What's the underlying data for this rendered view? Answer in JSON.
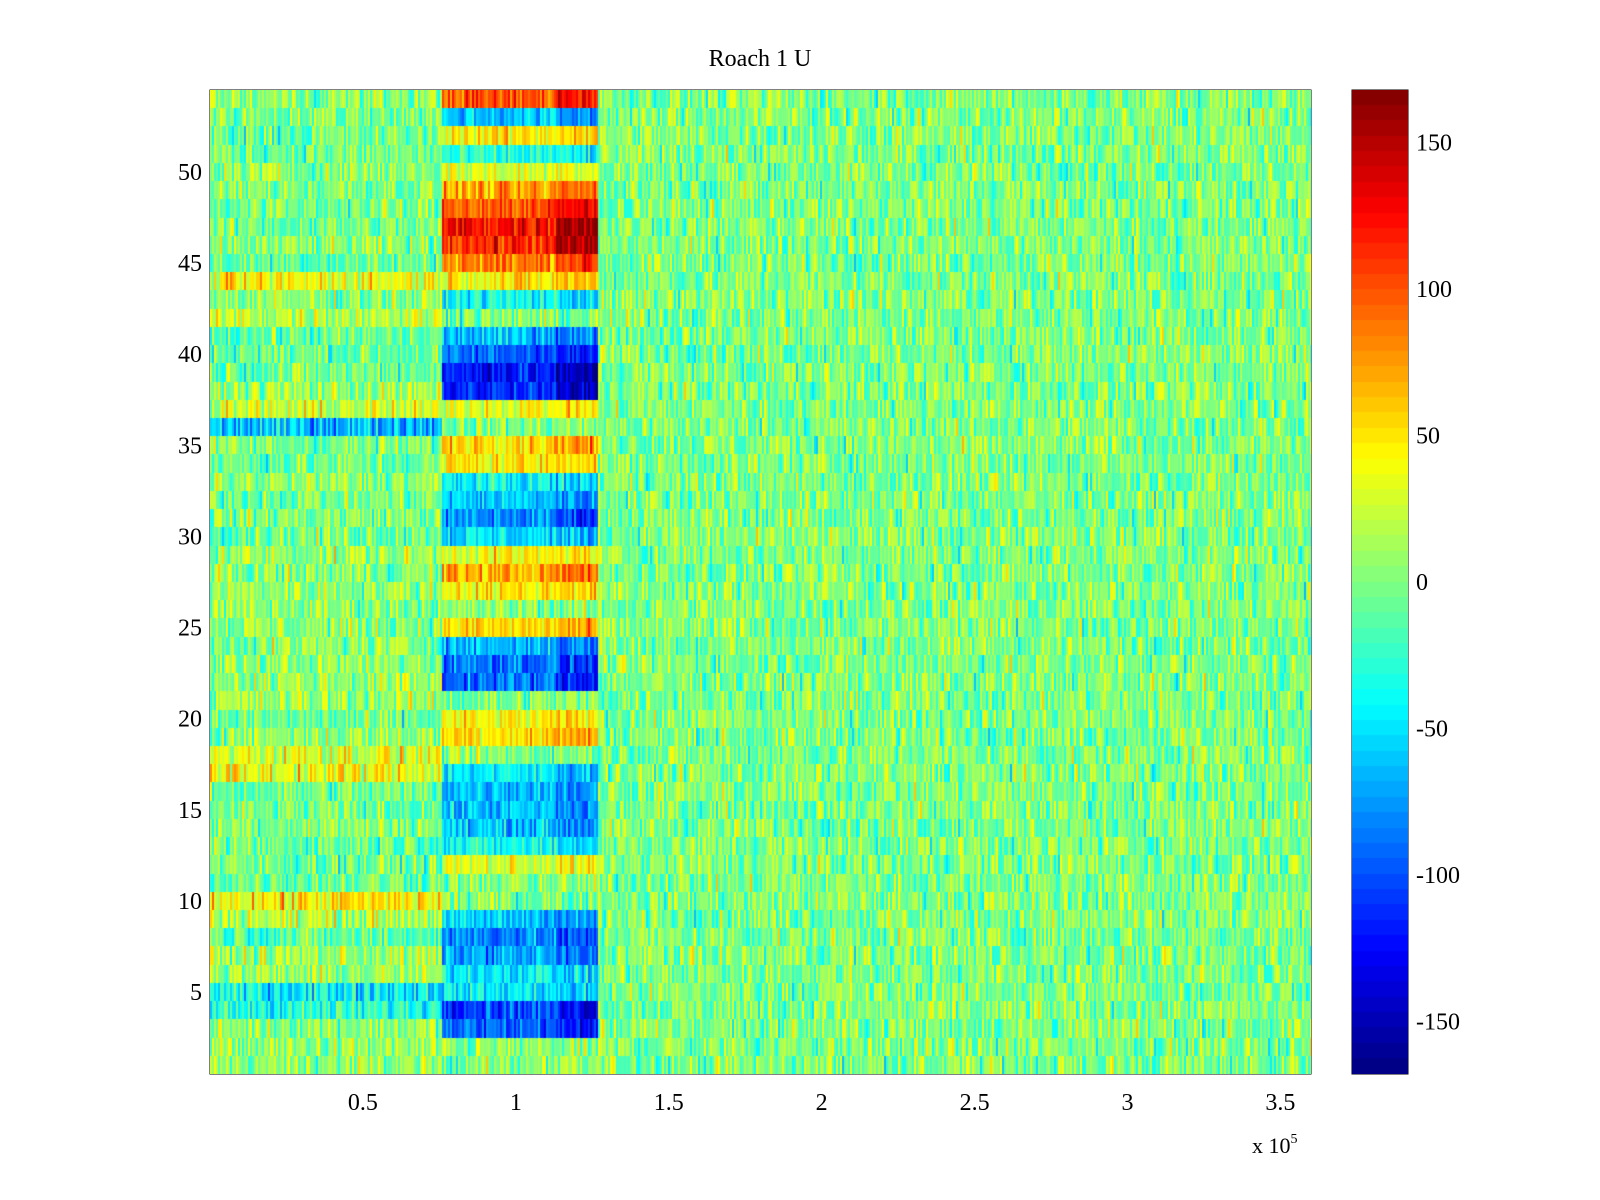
{
  "chart_data": {
    "type": "heatmap",
    "title": "Roach 1 U",
    "xlabel": "",
    "ylabel": "",
    "x_scale_label": "x 10",
    "x_scale_exponent": "5",
    "xlim": [
      0,
      3.6
    ],
    "ylim": [
      0.5,
      54.5
    ],
    "rows": 54,
    "x_ticks": [
      {
        "value": 0.5,
        "label": "0.5"
      },
      {
        "value": 1,
        "label": "1"
      },
      {
        "value": 1.5,
        "label": "1.5"
      },
      {
        "value": 2,
        "label": "2"
      },
      {
        "value": 2.5,
        "label": "2.5"
      },
      {
        "value": 3,
        "label": "3"
      },
      {
        "value": 3.5,
        "label": "3.5"
      }
    ],
    "y_ticks": [
      {
        "value": 5,
        "label": "5"
      },
      {
        "value": 10,
        "label": "10"
      },
      {
        "value": 15,
        "label": "15"
      },
      {
        "value": 20,
        "label": "20"
      },
      {
        "value": 25,
        "label": "25"
      },
      {
        "value": 30,
        "label": "30"
      },
      {
        "value": 35,
        "label": "35"
      },
      {
        "value": 40,
        "label": "40"
      },
      {
        "value": 45,
        "label": "45"
      },
      {
        "value": 50,
        "label": "50"
      }
    ],
    "colorbar": {
      "colormap": "jet",
      "clim": [
        -168,
        168
      ],
      "ticks": [
        {
          "value": 150,
          "label": "150"
        },
        {
          "value": 100,
          "label": "100"
        },
        {
          "value": 50,
          "label": "50"
        },
        {
          "value": 0,
          "label": "0"
        },
        {
          "value": -50,
          "label": "-50"
        },
        {
          "value": -100,
          "label": "-100"
        },
        {
          "value": -150,
          "label": "-150"
        }
      ]
    },
    "stimulus_window": {
      "x_start": 0.76,
      "x_mid": 1.13,
      "x_end": 1.27
    },
    "row_responses": [
      {
        "row": 3,
        "value": -110
      },
      {
        "row": 4,
        "value": -115
      },
      {
        "row": 5,
        "value": -55
      },
      {
        "row": 6,
        "value": -50
      },
      {
        "row": 7,
        "value": -85
      },
      {
        "row": 8,
        "value": -95
      },
      {
        "row": 9,
        "value": -70
      },
      {
        "row": 12,
        "value": 35
      },
      {
        "row": 13,
        "value": -45
      },
      {
        "row": 14,
        "value": -70
      },
      {
        "row": 15,
        "value": -75
      },
      {
        "row": 16,
        "value": -70
      },
      {
        "row": 17,
        "value": -55
      },
      {
        "row": 19,
        "value": 65
      },
      {
        "row": 20,
        "value": 45
      },
      {
        "row": 22,
        "value": -105
      },
      {
        "row": 23,
        "value": -100
      },
      {
        "row": 24,
        "value": -75
      },
      {
        "row": 25,
        "value": 60
      },
      {
        "row": 27,
        "value": 55
      },
      {
        "row": 28,
        "value": 80
      },
      {
        "row": 29,
        "value": 45
      },
      {
        "row": 30,
        "value": -60
      },
      {
        "row": 31,
        "value": -95
      },
      {
        "row": 32,
        "value": -70
      },
      {
        "row": 33,
        "value": -50
      },
      {
        "row": 34,
        "value": 55
      },
      {
        "row": 35,
        "value": 70
      },
      {
        "row": 37,
        "value": 45
      },
      {
        "row": 38,
        "value": -135
      },
      {
        "row": 39,
        "value": -140
      },
      {
        "row": 40,
        "value": -110
      },
      {
        "row": 41,
        "value": -75
      },
      {
        "row": 43,
        "value": -45
      },
      {
        "row": 44,
        "value": 55
      },
      {
        "row": 45,
        "value": 100
      },
      {
        "row": 46,
        "value": 135
      },
      {
        "row": 47,
        "value": 150
      },
      {
        "row": 48,
        "value": 115
      },
      {
        "row": 49,
        "value": 80
      },
      {
        "row": 50,
        "value": 35
      },
      {
        "row": 51,
        "value": -40
      },
      {
        "row": 52,
        "value": 55
      },
      {
        "row": 53,
        "value": -70
      },
      {
        "row": 54,
        "value": 115
      }
    ],
    "row_baseline": [
      {
        "row": 9,
        "value": 25
      },
      {
        "row": 10,
        "value": 35
      },
      {
        "row": 17,
        "value": 30
      },
      {
        "row": 18,
        "value": 35
      },
      {
        "row": 36,
        "value": -55
      },
      {
        "row": 37,
        "value": 15
      },
      {
        "row": 44,
        "value": 30
      },
      {
        "row": 42,
        "value": 20
      },
      {
        "row": 4,
        "value": -25
      },
      {
        "row": 5,
        "value": -30
      }
    ]
  }
}
